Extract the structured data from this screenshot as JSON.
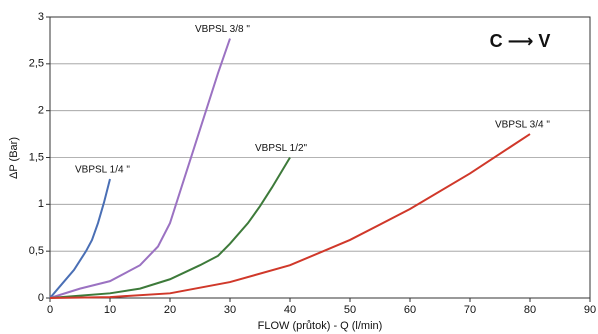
{
  "chart_data": {
    "type": "line",
    "annotation": "C ⟶ V",
    "x_label": "FLOW (průtok) - Q (l/min)",
    "y_label": "ΔP (Bar)",
    "xlim": [
      0,
      90
    ],
    "xticks": [
      0,
      10,
      20,
      30,
      40,
      50,
      60,
      70,
      80,
      90
    ],
    "ylim": [
      0,
      3
    ],
    "yticks": [
      0,
      {
        "value": 0.5,
        "label": "0,5"
      },
      1,
      {
        "value": 1.5,
        "label": "1,5"
      },
      2,
      {
        "value": 2.5,
        "label": "2,5"
      },
      3
    ],
    "grid": true,
    "series": [
      {
        "name": "VBPSL 1/4 \"",
        "color": "#4a6fb5",
        "x": [
          0,
          2,
          4,
          6,
          7,
          8,
          9,
          10
        ],
        "values": [
          0,
          0.15,
          0.3,
          0.5,
          0.62,
          0.8,
          1.02,
          1.27
        ]
      },
      {
        "name": "VBPSL 3/8 \"",
        "color": "#9b72c2",
        "x": [
          0,
          5,
          10,
          15,
          18,
          20,
          22,
          24,
          26,
          28,
          30
        ],
        "values": [
          0,
          0.1,
          0.18,
          0.35,
          0.55,
          0.8,
          1.2,
          1.6,
          2.0,
          2.4,
          2.77
        ]
      },
      {
        "name": "VBPSL 1/2\"",
        "color": "#3d7a3a",
        "x": [
          0,
          10,
          15,
          20,
          25,
          28,
          30,
          33,
          35,
          37,
          40
        ],
        "values": [
          0,
          0.05,
          0.1,
          0.2,
          0.35,
          0.45,
          0.58,
          0.8,
          0.98,
          1.18,
          1.5
        ]
      },
      {
        "name": "VBPSL 3/4 \"",
        "color": "#d0382a",
        "x": [
          0,
          10,
          20,
          30,
          40,
          50,
          60,
          70,
          80
        ],
        "values": [
          0,
          0.01,
          0.05,
          0.17,
          0.35,
          0.62,
          0.95,
          1.33,
          1.75
        ]
      }
    ]
  }
}
